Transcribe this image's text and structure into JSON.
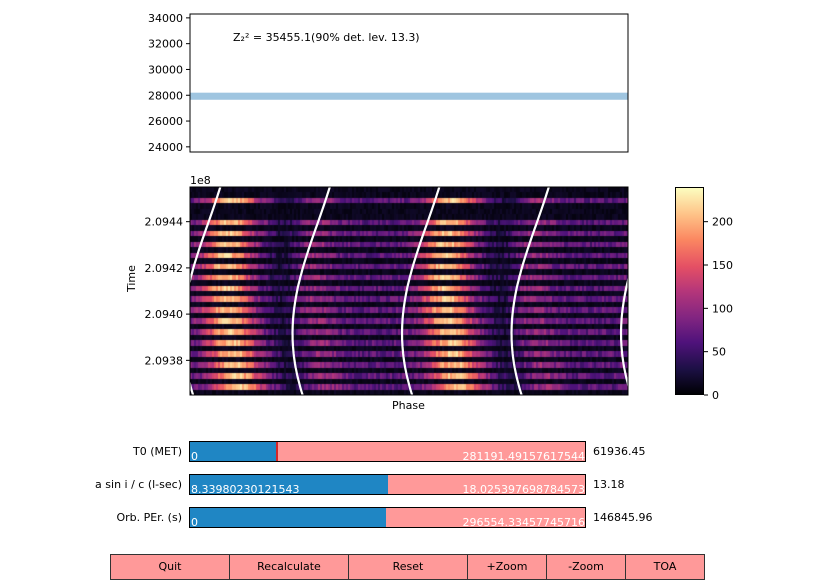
{
  "top_plot": {
    "annotation": "Z₂² = 35455.1(90% det. lev. 13.3)",
    "yticks": [
      "34000",
      "32000",
      "30000",
      "28000",
      "26000",
      "24000"
    ],
    "ylim": [
      23600,
      34300
    ],
    "threshold_band": [
      27650,
      28200
    ],
    "curve_color": "#000000",
    "band_color": "#9fc5e0"
  },
  "chart_data": {
    "type": "heatmap",
    "title": "",
    "xlabel": "Phase",
    "ylabel": "Time",
    "offset_label": "1e8",
    "yticks": [
      "2.0944",
      "2.0942",
      "2.0940",
      "2.0938"
    ],
    "ylim": [
      2.09365,
      2.09455
    ],
    "colorbar": {
      "ticks": [
        "200",
        "150",
        "100",
        "50",
        "0"
      ],
      "range": [
        0,
        240
      ]
    }
  },
  "sliders": [
    {
      "label": "T0 (MET)",
      "min": "0",
      "max": "281191.49157617544",
      "value": "61936.45",
      "fill_fraction": 0.22
    },
    {
      "label": "a sin i / c (l-sec)",
      "min": "8.33980230121543",
      "max": "18.025397698784573",
      "value": "13.18",
      "fill_fraction": 0.5
    },
    {
      "label": "Orb. PEr. (s)",
      "min": "0",
      "max": "296554.33457745716",
      "value": "146845.96",
      "fill_fraction": 0.495
    }
  ],
  "buttons": {
    "quit": "Quit",
    "recalculate": "Recalculate",
    "reset": "Reset",
    "zoom_in": "+Zoom",
    "zoom_out": "-Zoom",
    "toa": "TOA"
  }
}
